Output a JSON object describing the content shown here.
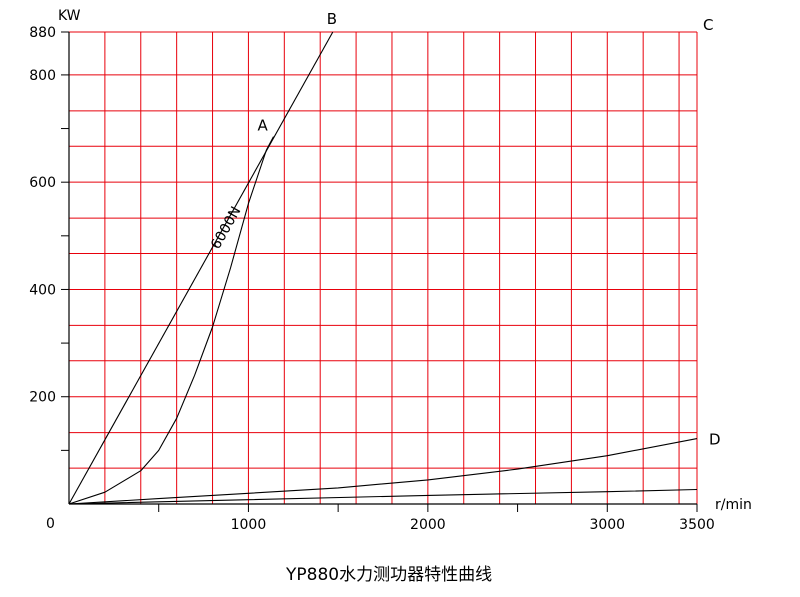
{
  "chart_data": {
    "type": "line",
    "title": "YP880水力测功器特性曲线",
    "xlabel": "r/min",
    "ylabel": "KW",
    "xlim": [
      0,
      3500
    ],
    "ylim": [
      0,
      880
    ],
    "grid": true,
    "origin_label": "0",
    "x_ticks": [
      {
        "value": 1000,
        "label": "1000"
      },
      {
        "value": 2000,
        "label": "2000"
      },
      {
        "value": 3000,
        "label": "3000"
      },
      {
        "value": 3500,
        "label": "3500"
      }
    ],
    "y_ticks": [
      {
        "value": 200,
        "label": "200"
      },
      {
        "value": 400,
        "label": "400"
      },
      {
        "value": 600,
        "label": "600"
      },
      {
        "value": 800,
        "label": "800"
      },
      {
        "value": 880,
        "label": "880"
      }
    ],
    "grid_x": [
      200,
      400,
      600,
      800,
      1000,
      1200,
      1400,
      1600,
      1800,
      2000,
      2200,
      2400,
      2600,
      2800,
      3000,
      3200,
      3400,
      3500
    ],
    "grid_y": [
      67,
      133,
      200,
      267,
      333,
      400,
      467,
      533,
      600,
      667,
      733,
      800,
      880
    ],
    "series": [
      {
        "name": "6000N",
        "points": [
          [
            0,
            0
          ],
          [
            1470,
            880
          ]
        ]
      },
      {
        "name": "",
        "points": [
          [
            0,
            0
          ],
          [
            200,
            22
          ],
          [
            400,
            62
          ],
          [
            500,
            100
          ],
          [
            600,
            160
          ],
          [
            700,
            240
          ],
          [
            800,
            330
          ],
          [
            900,
            440
          ],
          [
            1000,
            560
          ],
          [
            1100,
            660
          ],
          [
            1140,
            685
          ]
        ]
      },
      {
        "name": "",
        "points": [
          [
            0,
            0
          ],
          [
            500,
            10
          ],
          [
            1000,
            20
          ],
          [
            1500,
            30
          ],
          [
            2000,
            45
          ],
          [
            2500,
            65
          ],
          [
            3000,
            90
          ],
          [
            3500,
            122
          ]
        ]
      },
      {
        "name": "",
        "points": [
          [
            0,
            0
          ],
          [
            1000,
            8
          ],
          [
            2000,
            16
          ],
          [
            3000,
            23
          ],
          [
            3500,
            27
          ]
        ]
      }
    ],
    "annotations": [
      {
        "text": "A",
        "x": 1140,
        "y": 685
      },
      {
        "text": "B",
        "x": 1470,
        "y": 880
      },
      {
        "text": "C",
        "x": 3500,
        "y": 880
      },
      {
        "text": "D",
        "x": 3500,
        "y": 122
      }
    ]
  }
}
